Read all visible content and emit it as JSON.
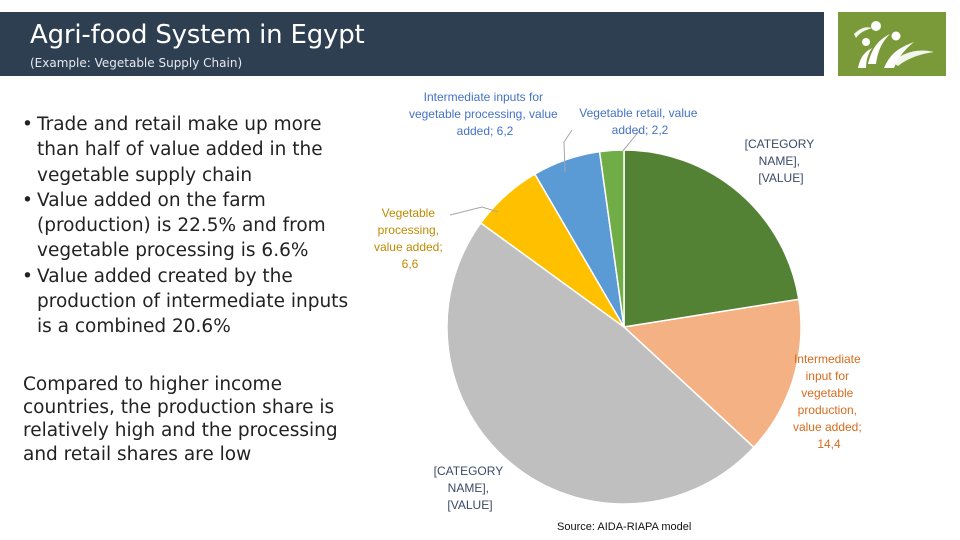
{
  "header": {
    "title": "Agri-food System in Egypt",
    "subtitle": "(Example: Vegetable Supply Chain)"
  },
  "logo": {
    "icon": "people-leaves-logo-icon",
    "color": "#7a9a3a"
  },
  "bullets": [
    "Trade and retail make up more than half of value added in the vegetable supply chain",
    "Value added on the farm (production) is 22.5% and from vegetable processing is 6.6%",
    "Value added created by the production of intermediate inputs is a combined 20.6%"
  ],
  "paragraph": "Compared to higher income countries, the production share is relatively high and the processing and retail shares are low",
  "chart_data": {
    "type": "pie",
    "slices": [
      {
        "label": "[CATEGORY NAME], [VALUE]",
        "value": 22.5,
        "color": "#548235"
      },
      {
        "label": "Intermediate input for vegetable production, value added; 14,4",
        "value": 14.4,
        "color": "#f4b183"
      },
      {
        "label": "[CATEGORY NAME], [VALUE]",
        "value": 48.1,
        "color": "#bfbfbf"
      },
      {
        "label": "Vegetable processing, value added; 6,6",
        "value": 6.6,
        "color": "#ffc000"
      },
      {
        "label": "Intermediate inputs for vegetable processing, value added; 6,2",
        "value": 6.2,
        "color": "#5b9bd5"
      },
      {
        "label": "Vegetable retail, value added; 2,2",
        "value": 2.2,
        "color": "#70ad47"
      }
    ],
    "data_labels": {
      "production": [
        "[CATEGORY",
        "NAME],",
        "[VALUE]"
      ],
      "intermediate_production": [
        "Intermediate",
        "input for",
        "vegetable",
        "production,",
        "value added;",
        "14,4"
      ],
      "trade": [
        "[CATEGORY",
        "NAME],",
        "[VALUE]"
      ],
      "processing": [
        "Vegetable",
        "processing,",
        "value added;",
        "6,6"
      ],
      "intermediate_processing": [
        "Intermediate inputs for",
        "vegetable processing, value",
        "added; 6,2"
      ],
      "retail": [
        "Vegetable retail, value",
        "added; 2,2"
      ]
    },
    "source": "Source: AIDA-RIAPA model"
  }
}
